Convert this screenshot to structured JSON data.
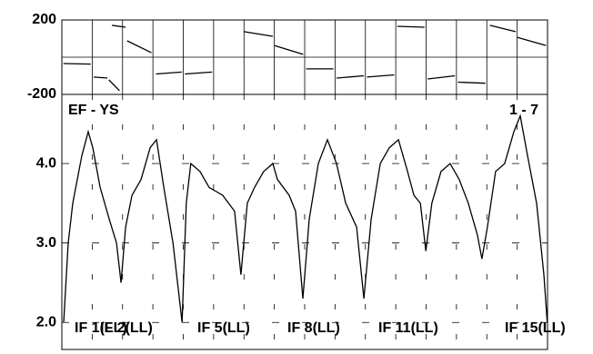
{
  "chart_data": [
    {
      "type": "line",
      "ylim": [
        -200,
        200
      ],
      "yticks": [
        200,
        -200
      ],
      "xlim": [
        0,
        16
      ],
      "xticks": [
        0,
        1,
        2,
        3,
        4,
        5,
        6,
        7,
        8,
        9,
        10,
        11,
        12,
        13,
        14,
        15,
        16
      ],
      "grid": true,
      "series": [
        {
          "color": "#000000",
          "x": [
            0.05,
            0.95,
            null,
            1.05,
            1.5,
            null,
            1.55,
            1.9,
            null,
            1.65,
            2.1,
            null,
            2.15,
            2.95,
            null,
            3.1,
            3.95,
            null,
            4.05,
            4.95,
            null,
            6.0,
            6.95,
            null,
            7.0,
            7.95,
            null,
            8.05,
            8.95,
            null,
            9.05,
            9.95,
            null,
            10.05,
            10.95,
            null,
            11.05,
            11.95,
            null,
            12.05,
            12.95,
            null,
            13.05,
            13.95,
            null,
            14.1,
            14.95,
            null,
            15.0,
            15.95
          ],
          "values": [
            -34,
            -37,
            null,
            -107,
            -112,
            null,
            -122,
            -180,
            null,
            171,
            161,
            null,
            88,
            24,
            null,
            -90,
            -80,
            null,
            -90,
            -80,
            null,
            137,
            112,
            null,
            63,
            15,
            null,
            -63,
            -63,
            null,
            -112,
            -100,
            null,
            -107,
            -95,
            null,
            166,
            161,
            null,
            -117,
            -100,
            null,
            -134,
            -140,
            null,
            171,
            137,
            null,
            107,
            63
          ]
        }
      ]
    },
    {
      "type": "line",
      "ylim": [
        1.66,
        4.87
      ],
      "yticks": [
        {
          "value": 4,
          "label": "4.0"
        },
        {
          "value": 3,
          "label": "3.0"
        },
        {
          "value": 2,
          "label": "2.0"
        }
      ],
      "xlim": [
        0,
        16
      ],
      "xticks": [
        0,
        1,
        2,
        3,
        4,
        5,
        6,
        7,
        8,
        9,
        10,
        11,
        12,
        13,
        14,
        15,
        16
      ],
      "grid": true,
      "annotations": [
        "EF - YS",
        "1 - 7",
        "IF 1(LL)",
        "IF 2(LL)",
        "IF 5(LL)",
        "IF 8(LL)",
        "IF 11(LL)",
        "IF 15(LL)"
      ],
      "series": [
        {
          "color": "#000000",
          "x": [
            0.06,
            0.21,
            0.36,
            0.66,
            0.87,
            1.02,
            1.26,
            1.56,
            1.8,
            1.95,
            2.1,
            2.31,
            2.61,
            2.91,
            3.12,
            3.36,
            3.66,
            3.96,
            4.1,
            4.25,
            4.55,
            4.85,
            5.3,
            5.69,
            5.9,
            6.11,
            6.35,
            6.65,
            6.95,
            7.1,
            7.49,
            7.7,
            7.94,
            8.15,
            8.45,
            8.75,
            9.05,
            9.35,
            9.71,
            9.95,
            10.19,
            10.49,
            10.79,
            11.09,
            11.39,
            11.6,
            11.81,
            11.99,
            12.19,
            12.49,
            12.79,
            13.09,
            13.39,
            13.69,
            13.84,
            14.02,
            14.29,
            14.59,
            14.89,
            15.1,
            15.34,
            15.64,
            15.88,
            15.99
          ],
          "values": [
            2.0,
            3.0,
            3.5,
            4.1,
            4.4,
            4.2,
            3.7,
            3.3,
            3.0,
            2.5,
            3.2,
            3.6,
            3.8,
            4.2,
            4.3,
            3.7,
            3.0,
            2.0,
            3.5,
            4.0,
            3.9,
            3.7,
            3.6,
            3.4,
            2.6,
            3.5,
            3.7,
            3.9,
            4.0,
            3.8,
            3.6,
            3.4,
            2.3,
            3.3,
            4.0,
            4.3,
            4.0,
            3.5,
            3.2,
            2.3,
            3.3,
            4.0,
            4.2,
            4.3,
            3.9,
            3.6,
            3.5,
            2.9,
            3.5,
            3.9,
            4.0,
            3.8,
            3.5,
            3.1,
            2.8,
            3.2,
            3.9,
            4.0,
            4.4,
            4.6,
            4.1,
            3.5,
            2.6,
            2.0
          ]
        }
      ]
    }
  ]
}
